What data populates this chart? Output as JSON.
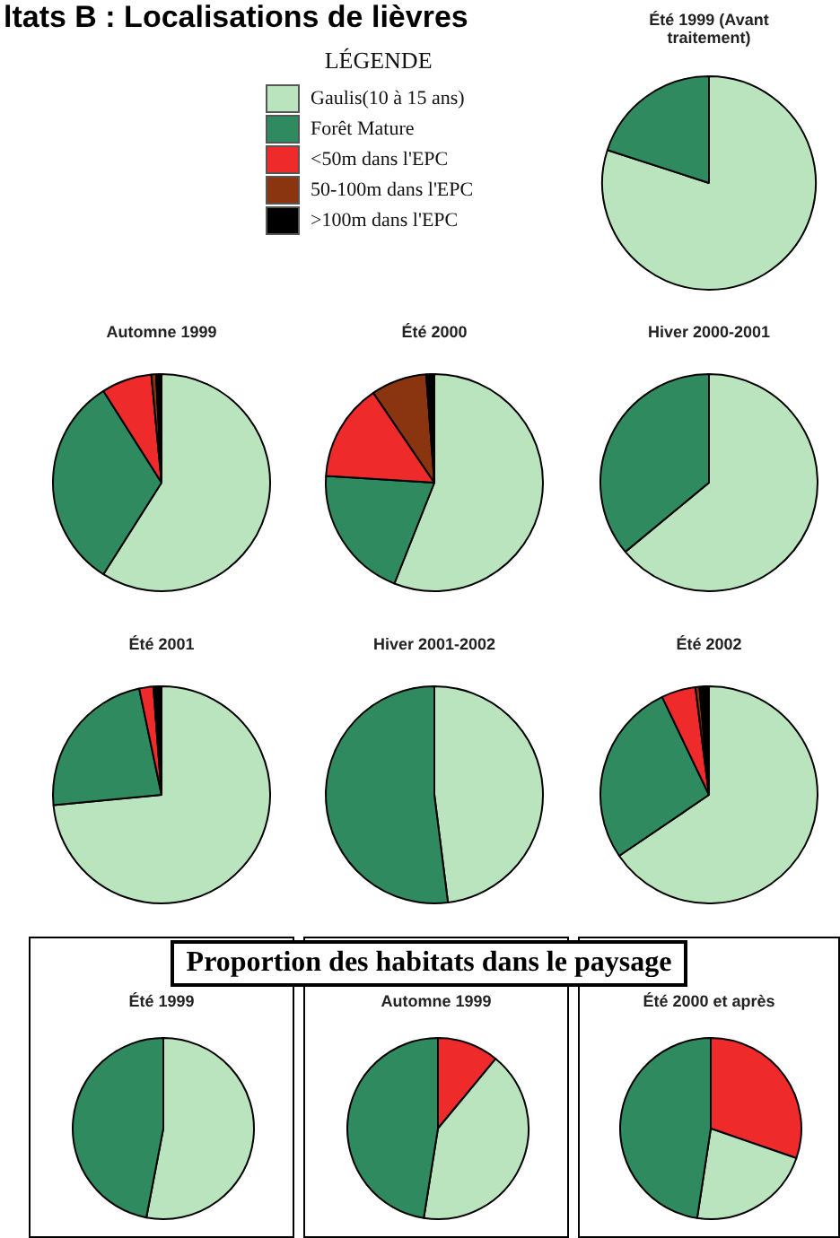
{
  "chart_data": [
    {
      "type": "other",
      "title": "ltats B : Localisations de lièvres"
    },
    {
      "type": "pie",
      "title": "Été 1999 (Avant traitement)",
      "legend_title": "LÉGENDE",
      "legend": "left",
      "categories": [
        "Gaulis(10 à 15 ans)",
        "Forêt Mature",
        "<50m dans l'EPC",
        "50-100m dans l'EPC",
        ">100m dans l'EPC"
      ],
      "values": [
        80,
        20,
        0,
        0,
        0
      ],
      "colors": [
        "#b9e4bd",
        "#2f8a60",
        "#ee2a2a",
        "#8a3510",
        "#000000"
      ]
    },
    {
      "type": "pie",
      "title": "Automne 1999",
      "categories": [
        null,
        null,
        null,
        null,
        null
      ],
      "values": [
        59,
        32,
        7.5,
        0.7,
        0.8
      ],
      "colors": [
        "#b9e4bd",
        "#2f8a60",
        "#ee2a2a",
        "#8a3510",
        "#000000"
      ]
    },
    {
      "type": "pie",
      "title": "Été 2000",
      "categories": [
        null,
        null,
        null,
        null,
        null
      ],
      "values": [
        56,
        20,
        14.5,
        8.3,
        1.2
      ],
      "colors": [
        "#b9e4bd",
        "#2f8a60",
        "#ee2a2a",
        "#8a3510",
        "#000000"
      ]
    },
    {
      "type": "pie",
      "title": "Hiver 2000-2001",
      "categories": [
        null,
        null
      ],
      "values": [
        64,
        36
      ],
      "colors": [
        "#b9e4bd",
        "#2f8a60"
      ]
    },
    {
      "type": "pie",
      "title": "Été 2001",
      "categories": [
        null,
        null,
        null,
        null
      ],
      "values": [
        73.5,
        23.2,
        2.1,
        1.2
      ],
      "colors": [
        "#b9e4bd",
        "#2f8a60",
        "#ee2a2a",
        "#000000"
      ]
    },
    {
      "type": "pie",
      "title": "Hiver 2001-2002",
      "categories": [
        null,
        null
      ],
      "values": [
        48,
        52
      ],
      "colors": [
        "#b9e4bd",
        "#2f8a60"
      ]
    },
    {
      "type": "pie",
      "title": "Été 2002",
      "categories": [
        null,
        null,
        null,
        null,
        null
      ],
      "values": [
        65.5,
        27.4,
        5.1,
        0.6,
        1.4
      ],
      "colors": [
        "#b9e4bd",
        "#2f8a60",
        "#ee2a2a",
        "#8a3510",
        "#000000"
      ]
    },
    {
      "type": "other",
      "title": "Proportion des habitats dans le paysage"
    },
    {
      "type": "pie",
      "title": "Été 1999",
      "categories": [
        null,
        null
      ],
      "values": [
        53,
        47
      ],
      "colors": [
        "#b9e4bd",
        "#2f8a60"
      ]
    },
    {
      "type": "pie",
      "title": "Automne 1999",
      "categories": [
        null,
        null,
        null
      ],
      "values": [
        11,
        41.5,
        47.5
      ],
      "colors": [
        "#ee2a2a",
        "#b9e4bd",
        "#2f8a60"
      ]
    },
    {
      "type": "pie",
      "title": "Été 2000 et après",
      "categories": [
        null,
        null,
        null
      ],
      "values": [
        30.3,
        22.1,
        47.6
      ],
      "colors": [
        "#ee2a2a",
        "#b9e4bd",
        "#2f8a60"
      ]
    }
  ]
}
